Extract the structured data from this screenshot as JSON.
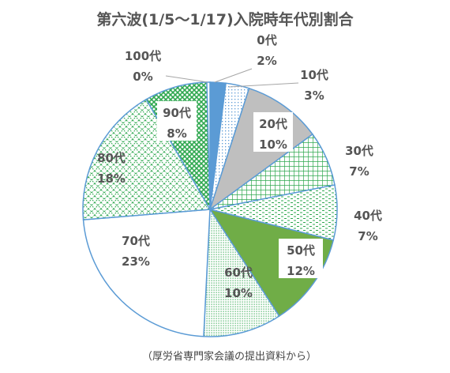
{
  "chart_data": {
    "type": "pie",
    "title": "第六波(1/5～1/17)入院時年代別割合",
    "slices": [
      {
        "label": "0代",
        "percent_label": "2%",
        "value": 2,
        "fill": "solid-blue",
        "color": "#5b9bd5"
      },
      {
        "label": "10代",
        "percent_label": "3%",
        "value": 3,
        "fill": "dots-blue",
        "color": "#5b9bd5"
      },
      {
        "label": "20代",
        "percent_label": "10%",
        "value": 10,
        "fill": "solid-gray",
        "color": "#bfbfbf"
      },
      {
        "label": "30代",
        "percent_label": "7%",
        "value": 7,
        "fill": "grid-green",
        "color": "#2fa84f"
      },
      {
        "label": "40代",
        "percent_label": "7%",
        "value": 7,
        "fill": "dashes-green",
        "color": "#2fa84f"
      },
      {
        "label": "50代",
        "percent_label": "12%",
        "value": 12,
        "fill": "solid-green",
        "color": "#70ad47"
      },
      {
        "label": "60代",
        "percent_label": "10%",
        "value": 10,
        "fill": "dots-green",
        "color": "#2fa84f"
      },
      {
        "label": "70代",
        "percent_label": "23%",
        "value": 23,
        "fill": "white",
        "color": "#ffffff"
      },
      {
        "label": "80代",
        "percent_label": "18%",
        "value": 18,
        "fill": "diag-green",
        "color": "#2fa84f"
      },
      {
        "label": "90代",
        "percent_label": "8%",
        "value": 8,
        "fill": "diamond-green",
        "color": "#2fa84f"
      },
      {
        "label": "100代",
        "percent_label": "0%",
        "value": 0.4,
        "fill": "white",
        "color": "#ffffff"
      }
    ],
    "border_color": "#5b9bd5"
  },
  "source_note": "（厚労省専門家会議の提出資料から）"
}
